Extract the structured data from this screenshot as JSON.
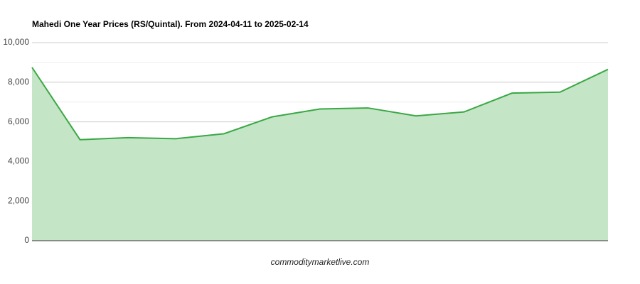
{
  "chart_data": {
    "type": "area",
    "title": "Mahedi One Year Prices (RS/Quintal). From 2024-04-11 to 2025-02-14",
    "source": "commoditymarketlive.com",
    "categories": [
      null,
      null,
      null,
      null,
      null,
      null,
      null,
      null,
      null,
      null,
      null,
      null,
      null
    ],
    "series": [
      {
        "name": "Mahedi",
        "color": "#3aa845",
        "fill": "#c5e6c6",
        "values": [
          8750,
          5100,
          5200,
          5150,
          5400,
          6250,
          6650,
          6700,
          6300,
          6500,
          7450,
          7500,
          8650
        ]
      }
    ],
    "ylim": [
      0,
      10000
    ],
    "yticks": [
      0,
      {
        "value": 2000,
        "label": "2,000"
      },
      {
        "value": 4000,
        "label": "4,000"
      },
      {
        "value": 6000,
        "label": "6,000"
      },
      {
        "value": 8000,
        "label": "8,000"
      },
      {
        "value": 10000,
        "label": "10,000"
      }
    ],
    "minor_yticks": [
      1000,
      3000,
      5000,
      7000,
      9000
    ],
    "grid": true
  }
}
